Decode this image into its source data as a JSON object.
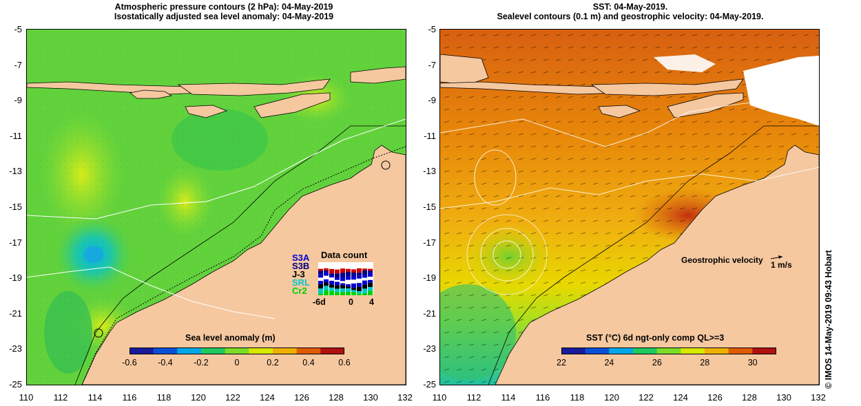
{
  "left_panel": {
    "title_line1": "Atmospheric pressure contours (2 hPa): 04-May-2019",
    "title_line2": "Isostatically adjusted sea level anomaly: 04-May-2019",
    "colorbar_title": "Sea level anomaly (m)",
    "colorbar_ticks": [
      "-0.6",
      "-0.4",
      "-0.2",
      "0",
      "0.2",
      "0.4",
      "0.6"
    ],
    "colorbar_colors": [
      "#1a1a9c",
      "#0a4fd8",
      "#00a8e8",
      "#20c860",
      "#7cdc28",
      "#d8e800",
      "#f0b000",
      "#e05a00",
      "#b01010"
    ],
    "data_count": {
      "title": "Data count",
      "missions": [
        "S3A",
        "S3B",
        "J-3",
        "SRL",
        "Cr2"
      ],
      "mission_colors": [
        "#0000cc",
        "#000080",
        "#000000",
        "#00c8c8",
        "#00d000"
      ],
      "axis_ticks": [
        "-6d",
        "0",
        "4"
      ]
    }
  },
  "right_panel": {
    "title_line1": "SST: 04-May-2019.",
    "title_line2": "Sealevel contours (0.1 m) and geostrophic velocity: 04-May-2019.",
    "colorbar_title": "SST (°C) 6d ngt-only comp QL>=3",
    "colorbar_ticks": [
      "22",
      "24",
      "26",
      "28",
      "30"
    ],
    "colorbar_colors": [
      "#1a1a9c",
      "#0a4fd8",
      "#00a8e8",
      "#20c860",
      "#7cdc28",
      "#d8e800",
      "#f0b000",
      "#e05a00",
      "#b01010"
    ],
    "velocity_label": "Geostrophic velocity",
    "velocity_scale": "1 m/s"
  },
  "y_axis_ticks": [
    "-5",
    "-7",
    "-9",
    "-11",
    "-13",
    "-15",
    "-17",
    "-19",
    "-21",
    "-23",
    "-25"
  ],
  "x_axis_ticks": [
    "110",
    "112",
    "114",
    "116",
    "118",
    "120",
    "122",
    "124",
    "126",
    "128",
    "130",
    "132"
  ],
  "credit": "© IMOS 14-May-2019 09:43 Hobart"
}
